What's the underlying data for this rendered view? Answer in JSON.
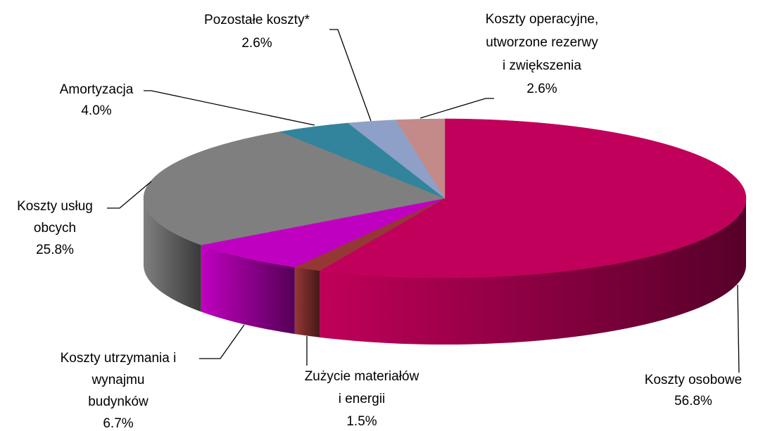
{
  "chart_data": {
    "type": "pie3d",
    "categories": [
      "Koszty osobowe",
      "Zużycie materiałów\ni energii",
      "Koszty utrzymania i\nwynajmu\nbudynków",
      "Koszty usług\nobcych",
      "Amortyzacja",
      "Pozostałe koszty*",
      "Koszty operacyjne,\nutworzone rezerwy\ni zwiększenia"
    ],
    "values": [
      56.8,
      1.5,
      6.7,
      25.8,
      4.0,
      2.6,
      2.6
    ],
    "value_labels": [
      "56.8%",
      "1.5%",
      "6.7%",
      "25.8%",
      "4.0%",
      "2.6%",
      "2.6%"
    ],
    "colors": [
      "#c0005a",
      "#953735",
      "#c000c0",
      "#7f7f7f",
      "#31849b",
      "#8ea0c8",
      "#c48a8a"
    ]
  }
}
